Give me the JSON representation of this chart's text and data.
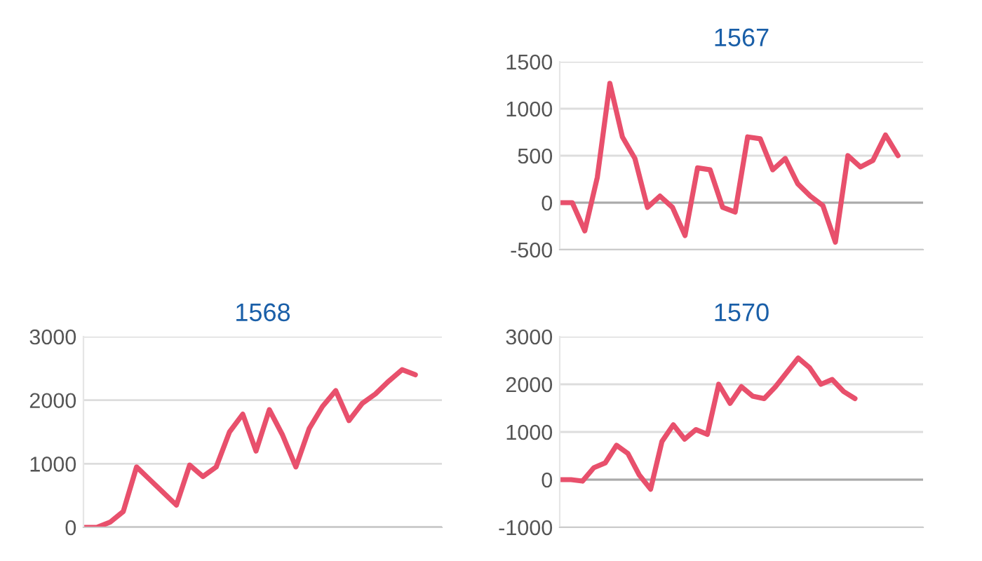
{
  "chart_data": [
    {
      "type": "line",
      "title": "1567",
      "categories": [
        null,
        null,
        null,
        null,
        null,
        null,
        null,
        null,
        null,
        null,
        null,
        null,
        null,
        null,
        null,
        null,
        null,
        null,
        null,
        null,
        null,
        null,
        null,
        null,
        null,
        null,
        null,
        null,
        null,
        null
      ],
      "series": [
        {
          "color": "#e8506c",
          "values": [
            0,
            0,
            -300,
            270,
            1270,
            700,
            470,
            -50,
            70,
            -50,
            -350,
            370,
            350,
            -50,
            -100,
            700,
            680,
            350,
            470,
            200,
            70,
            -30,
            -420,
            500,
            380,
            450,
            720,
            500,
            null,
            null
          ]
        }
      ],
      "ylim": [
        -500,
        1500
      ],
      "yticks": [
        -500,
        0,
        500,
        1000,
        1500
      ],
      "grid": "y",
      "legend": false,
      "marker": "none",
      "line_style": "solid"
    },
    {
      "type": "line",
      "title": "1568",
      "categories": [
        null,
        null,
        null,
        null,
        null,
        null,
        null,
        null,
        null,
        null,
        null,
        null,
        null,
        null,
        null,
        null,
        null,
        null,
        null,
        null,
        null,
        null,
        null,
        null,
        null,
        null,
        null,
        null
      ],
      "series": [
        {
          "color": "#e8506c",
          "values": [
            0,
            0,
            80,
            250,
            950,
            750,
            550,
            350,
            980,
            800,
            950,
            1500,
            1780,
            1200,
            1850,
            1450,
            950,
            1550,
            1900,
            2150,
            1680,
            1950,
            2100,
            2300,
            2480,
            2400,
            null,
            null
          ]
        }
      ],
      "ylim": [
        0,
        3000
      ],
      "yticks": [
        0,
        1000,
        2000,
        3000
      ],
      "grid": "y",
      "legend": false,
      "marker": "none",
      "line_style": "solid"
    },
    {
      "type": "line",
      "title": "1570",
      "categories": [
        null,
        null,
        null,
        null,
        null,
        null,
        null,
        null,
        null,
        null,
        null,
        null,
        null,
        null,
        null,
        null,
        null,
        null,
        null,
        null,
        null,
        null,
        null,
        null,
        null,
        null,
        null,
        null,
        null,
        null,
        null,
        null,
        null
      ],
      "series": [
        {
          "color": "#e8506c",
          "values": [
            0,
            0,
            -30,
            250,
            350,
            720,
            550,
            100,
            -200,
            800,
            1150,
            850,
            1050,
            950,
            2000,
            1600,
            1950,
            1750,
            1700,
            1950,
            2250,
            2550,
            2350,
            2000,
            2100,
            1850,
            1700,
            null,
            null,
            null,
            null,
            null,
            null
          ]
        }
      ],
      "ylim": [
        -1000,
        3000
      ],
      "yticks": [
        -1000,
        0,
        1000,
        2000,
        3000
      ],
      "grid": "y",
      "legend": false,
      "marker": "none",
      "line_style": "solid"
    }
  ]
}
